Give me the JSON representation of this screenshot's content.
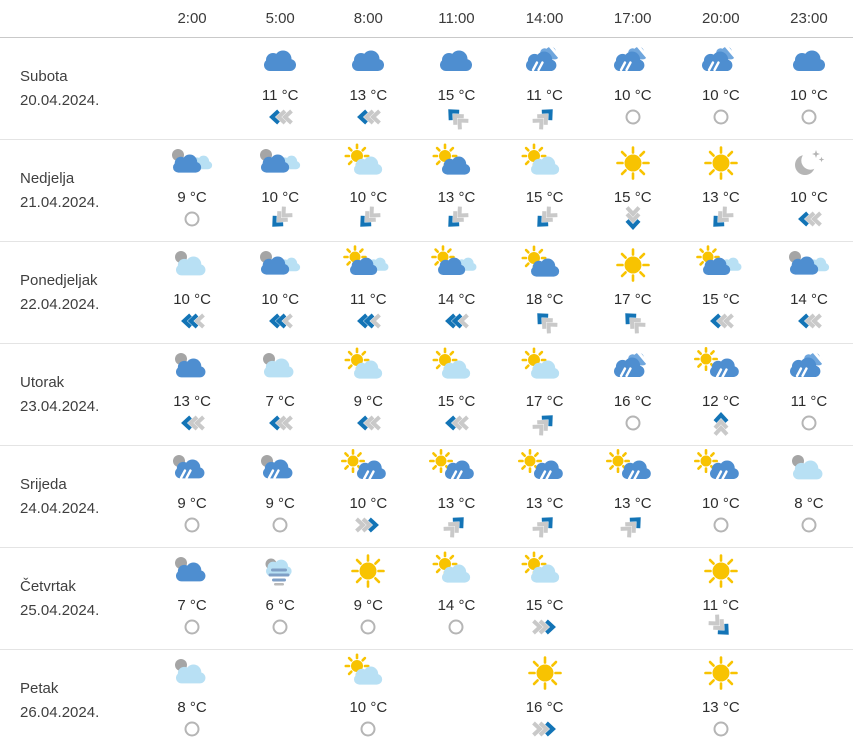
{
  "header": {
    "time_labels": [
      "2:00",
      "5:00",
      "8:00",
      "11:00",
      "14:00",
      "17:00",
      "20:00",
      "23:00"
    ]
  },
  "colors": {
    "cloud_blue": "#4e8ed0",
    "cloud_blue_back": "#6fa6dd",
    "cloud_light": "#b8e0f4",
    "cloud_gray": "#a5a5a5",
    "sun_yellow": "#f8c301",
    "rain_streak": "#ffffff",
    "wind_blue": "#1374b6",
    "wind_gray": "#c9c9c9",
    "calm_gray": "#b5b5b5",
    "moon_gray": "#b5b5b5",
    "fog_bar": "#7f9fc6",
    "fog_bar_gray": "#b9b9b9"
  },
  "days": [
    {
      "name": "Subota",
      "date": "20.04.2024.",
      "cells": [
        null,
        {
          "icon": "cloud-blue",
          "temp": "11 °C",
          "wind": "left-1"
        },
        {
          "icon": "cloud-blue",
          "temp": "13 °C",
          "wind": "left-1"
        },
        {
          "icon": "cloud-blue",
          "temp": "15 °C",
          "wind": "up-left-1"
        },
        {
          "icon": "rain-blue",
          "temp": "11 °C",
          "wind": "up-right-1"
        },
        {
          "icon": "rain-blue",
          "temp": "10 °C",
          "wind": "calm"
        },
        {
          "icon": "rain-blue",
          "temp": "10 °C",
          "wind": "calm"
        },
        {
          "icon": "cloud-blue",
          "temp": "10 °C",
          "wind": "calm"
        }
      ]
    },
    {
      "name": "Nedjelja",
      "date": "21.04.2024.",
      "cells": [
        {
          "icon": "clouds-gray-blue-light",
          "temp": "9 °C",
          "wind": "calm"
        },
        {
          "icon": "clouds-gray-blue-light",
          "temp": "10 °C",
          "wind": "down-left-1"
        },
        {
          "icon": "sun-cloud-light",
          "temp": "10 °C",
          "wind": "down-left-1"
        },
        {
          "icon": "sun-cloud-blue",
          "temp": "13 °C",
          "wind": "down-left-1"
        },
        {
          "icon": "sun-cloud-light",
          "temp": "15 °C",
          "wind": "down-left-1"
        },
        {
          "icon": "sun",
          "temp": "15 °C",
          "wind": "down-1"
        },
        {
          "icon": "sun",
          "temp": "13 °C",
          "wind": "down-left-1"
        },
        {
          "icon": "moon-stars",
          "temp": "10 °C",
          "wind": "left-1"
        }
      ]
    },
    {
      "name": "Ponedjeljak",
      "date": "22.04.2024.",
      "cells": [
        {
          "icon": "clouds-gray-light",
          "temp": "10 °C",
          "wind": "left-2"
        },
        {
          "icon": "clouds-gray-blue-light",
          "temp": "10 °C",
          "wind": "left-2"
        },
        {
          "icon": "sun-clouds-blue-light",
          "temp": "11 °C",
          "wind": "left-2"
        },
        {
          "icon": "sun-clouds-blue-light",
          "temp": "14 °C",
          "wind": "left-2"
        },
        {
          "icon": "sun-cloud-blue",
          "temp": "18 °C",
          "wind": "up-left-1"
        },
        {
          "icon": "sun",
          "temp": "17 °C",
          "wind": "up-left-1"
        },
        {
          "icon": "sun-clouds-blue-light",
          "temp": "15 °C",
          "wind": "left-1"
        },
        {
          "icon": "clouds-gray-blue-light",
          "temp": "14 °C",
          "wind": "left-1"
        }
      ]
    },
    {
      "name": "Utorak",
      "date": "23.04.2024.",
      "cells": [
        {
          "icon": "clouds-gray-blue",
          "temp": "13 °C",
          "wind": "left-1"
        },
        {
          "icon": "clouds-gray-light",
          "temp": "7 °C",
          "wind": "left-1"
        },
        {
          "icon": "sun-cloud-light",
          "temp": "9 °C",
          "wind": "left-1"
        },
        {
          "icon": "sun-cloud-light",
          "temp": "15 °C",
          "wind": "left-1"
        },
        {
          "icon": "sun-cloud-light",
          "temp": "17 °C",
          "wind": "up-right-1"
        },
        {
          "icon": "rain-blue",
          "temp": "16 °C",
          "wind": "calm"
        },
        {
          "icon": "sun-rain",
          "temp": "12 °C",
          "wind": "up-1"
        },
        {
          "icon": "rain-blue",
          "temp": "11 °C",
          "wind": "calm"
        }
      ]
    },
    {
      "name": "Srijeda",
      "date": "24.04.2024.",
      "cells": [
        {
          "icon": "rain-gray",
          "temp": "9 °C",
          "wind": "calm"
        },
        {
          "icon": "rain-gray",
          "temp": "9 °C",
          "wind": "calm"
        },
        {
          "icon": "sun-rain",
          "temp": "10 °C",
          "wind": "right-1"
        },
        {
          "icon": "sun-rain",
          "temp": "13 °C",
          "wind": "up-right-1"
        },
        {
          "icon": "sun-rain",
          "temp": "13 °C",
          "wind": "up-right-1"
        },
        {
          "icon": "sun-rain",
          "temp": "13 °C",
          "wind": "up-right-1"
        },
        {
          "icon": "sun-rain",
          "temp": "10 °C",
          "wind": "calm"
        },
        {
          "icon": "clouds-gray-light",
          "temp": "8 °C",
          "wind": "calm"
        }
      ]
    },
    {
      "name": "Četvrtak",
      "date": "25.04.2024.",
      "cells": [
        {
          "icon": "clouds-gray-blue",
          "temp": "7 °C",
          "wind": "calm"
        },
        {
          "icon": "fog",
          "temp": "6 °C",
          "wind": "calm"
        },
        {
          "icon": "sun",
          "temp": "9 °C",
          "wind": "calm"
        },
        {
          "icon": "sun-cloud-light",
          "temp": "14 °C",
          "wind": "calm"
        },
        {
          "icon": "sun-cloud-light",
          "temp": "15 °C",
          "wind": "right-1"
        },
        null,
        {
          "icon": "sun",
          "temp": "11 °C",
          "wind": "down-right-1"
        },
        null
      ]
    },
    {
      "name": "Petak",
      "date": "26.04.2024.",
      "cells": [
        {
          "icon": "clouds-gray-light",
          "temp": "8 °C",
          "wind": "calm"
        },
        null,
        {
          "icon": "sun-cloud-light",
          "temp": "10 °C",
          "wind": "calm"
        },
        null,
        {
          "icon": "sun",
          "temp": "16 °C",
          "wind": "right-1"
        },
        null,
        {
          "icon": "sun",
          "temp": "13 °C",
          "wind": "calm"
        },
        null
      ]
    }
  ]
}
